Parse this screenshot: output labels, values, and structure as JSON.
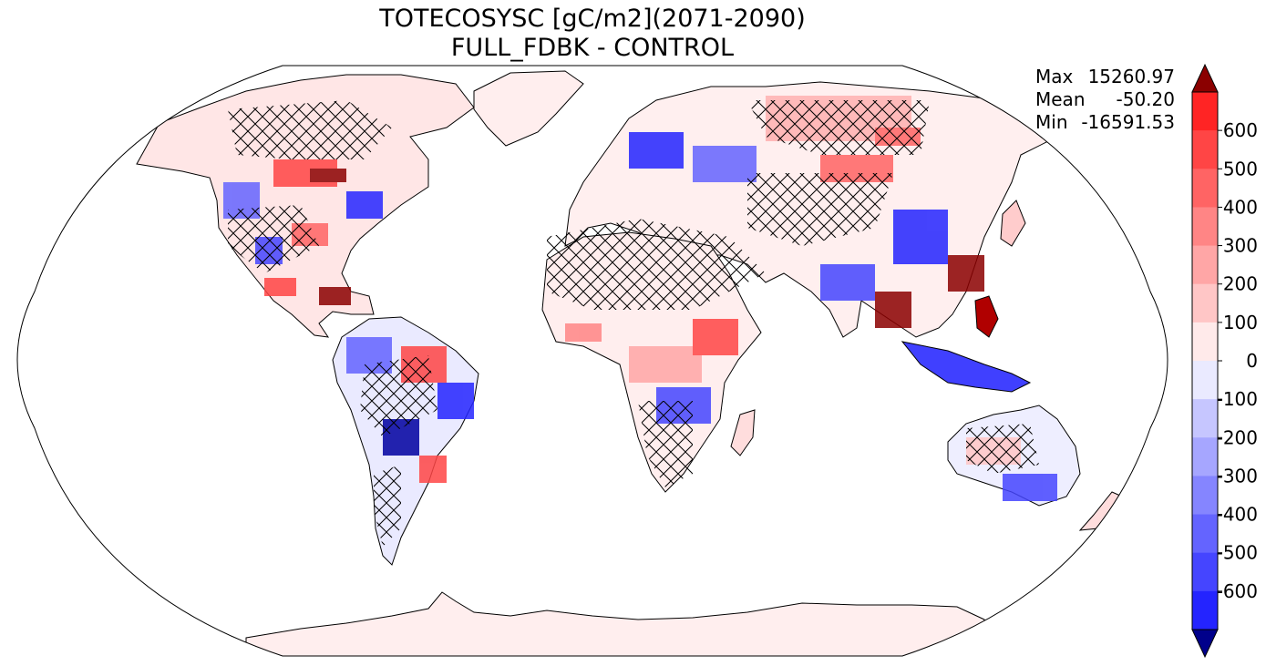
{
  "title": {
    "line1": "TOTECOSYSC [gC/m2](2071-2090)",
    "line2": "FULL_FDBK - CONTROL"
  },
  "stats": [
    {
      "label": "Max",
      "value": "15260.97"
    },
    {
      "label": "Mean",
      "value": "-50.20"
    },
    {
      "label": "Min",
      "value": "-16591.53"
    }
  ],
  "colorbar": {
    "labels": [
      "600",
      "500",
      "400",
      "300",
      "200",
      "100",
      "0",
      "-100",
      "-200",
      "-300",
      "-400",
      "-500",
      "-600"
    ],
    "colors": [
      "#ff2424",
      "#ff4545",
      "#ff6464",
      "#ff8585",
      "#ffa6a6",
      "#ffc6c6",
      "#ffeaea",
      "#eaeaff",
      "#c6c6ff",
      "#a6a6ff",
      "#8585ff",
      "#6464ff",
      "#4545ff",
      "#2424ff"
    ],
    "over_color": "#8b0000",
    "under_color": "#00008b"
  }
}
